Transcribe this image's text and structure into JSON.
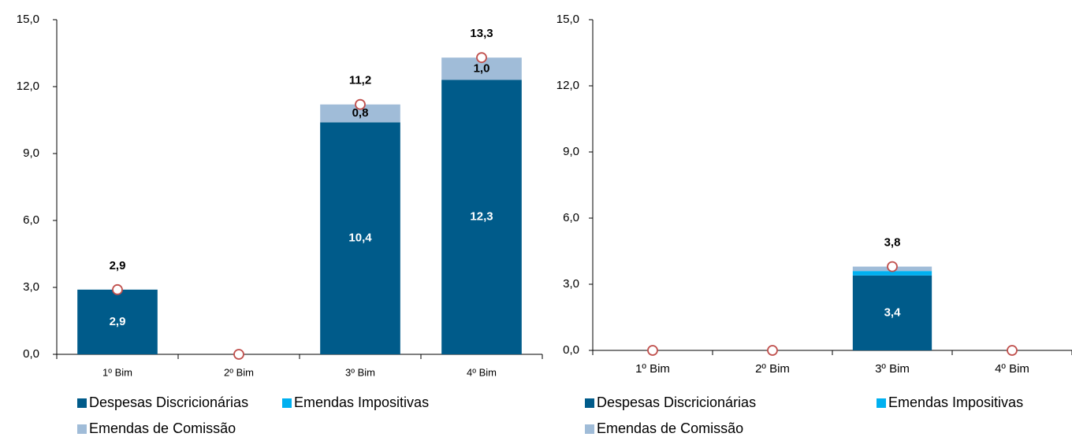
{
  "chart_data": [
    {
      "type": "stacked_bar",
      "categories": [
        "1º Bim",
        "2º Bim",
        "3º Bim",
        "4º Bim"
      ],
      "series": [
        {
          "name": "Despesas Discricionárias",
          "color": "#005b8a",
          "values": [
            2.9,
            0,
            10.4,
            12.3
          ],
          "value_labels": [
            "2,9",
            null,
            "10,4",
            "12,3"
          ]
        },
        {
          "name": "Emendas Impositivas",
          "color": "#00b0f0",
          "values": [
            0,
            0,
            0,
            0
          ],
          "value_labels": [
            null,
            null,
            null,
            null
          ]
        },
        {
          "name": "Emendas de Comissão",
          "color": "#a0bcd8",
          "values": [
            0,
            0,
            0.8,
            1.0
          ],
          "value_labels": [
            null,
            null,
            "0,8",
            "1,0"
          ]
        }
      ],
      "totals": {
        "color": "#c0504d",
        "values": [
          2.9,
          0,
          11.2,
          13.3
        ],
        "value_labels": [
          "2,9",
          null,
          "11,2",
          "13,3"
        ]
      },
      "ylim": [
        0,
        15
      ],
      "yticks": [
        {
          "value": 0,
          "label": "0,0"
        },
        {
          "value": 3,
          "label": "3,0"
        },
        {
          "value": 6,
          "label": "6,0"
        },
        {
          "value": 9,
          "label": "9,0"
        },
        {
          "value": 12,
          "label": "12,0"
        },
        {
          "value": 15,
          "label": "15,0"
        }
      ]
    },
    {
      "type": "stacked_bar",
      "categories": [
        "1º Bim",
        "2º Bim",
        "3º Bim",
        "4º Bim"
      ],
      "series": [
        {
          "name": "Despesas Discricionárias",
          "color": "#005b8a",
          "values": [
            0,
            0,
            3.4,
            0
          ],
          "value_labels": [
            null,
            null,
            "3,4",
            null
          ]
        },
        {
          "name": "Emendas Impositivas",
          "color": "#00b0f0",
          "values": [
            0,
            0,
            0.2,
            0
          ],
          "value_labels": [
            null,
            null,
            null,
            null
          ]
        },
        {
          "name": "Emendas de Comissão",
          "color": "#a0bcd8",
          "values": [
            0,
            0,
            0.2,
            0
          ],
          "value_labels": [
            null,
            null,
            null,
            null
          ]
        }
      ],
      "totals": {
        "color": "#c0504d",
        "values": [
          0,
          0,
          3.8,
          0
        ],
        "value_labels": [
          null,
          null,
          "3,8",
          null
        ]
      },
      "ylim": [
        0,
        15
      ],
      "yticks": [
        {
          "value": 0,
          "label": "0,0"
        },
        {
          "value": 3,
          "label": "3,0"
        },
        {
          "value": 6,
          "label": "6,0"
        },
        {
          "value": 9,
          "label": "9,0"
        },
        {
          "value": 12,
          "label": "12,0"
        },
        {
          "value": 15,
          "label": "15,0"
        }
      ]
    }
  ]
}
